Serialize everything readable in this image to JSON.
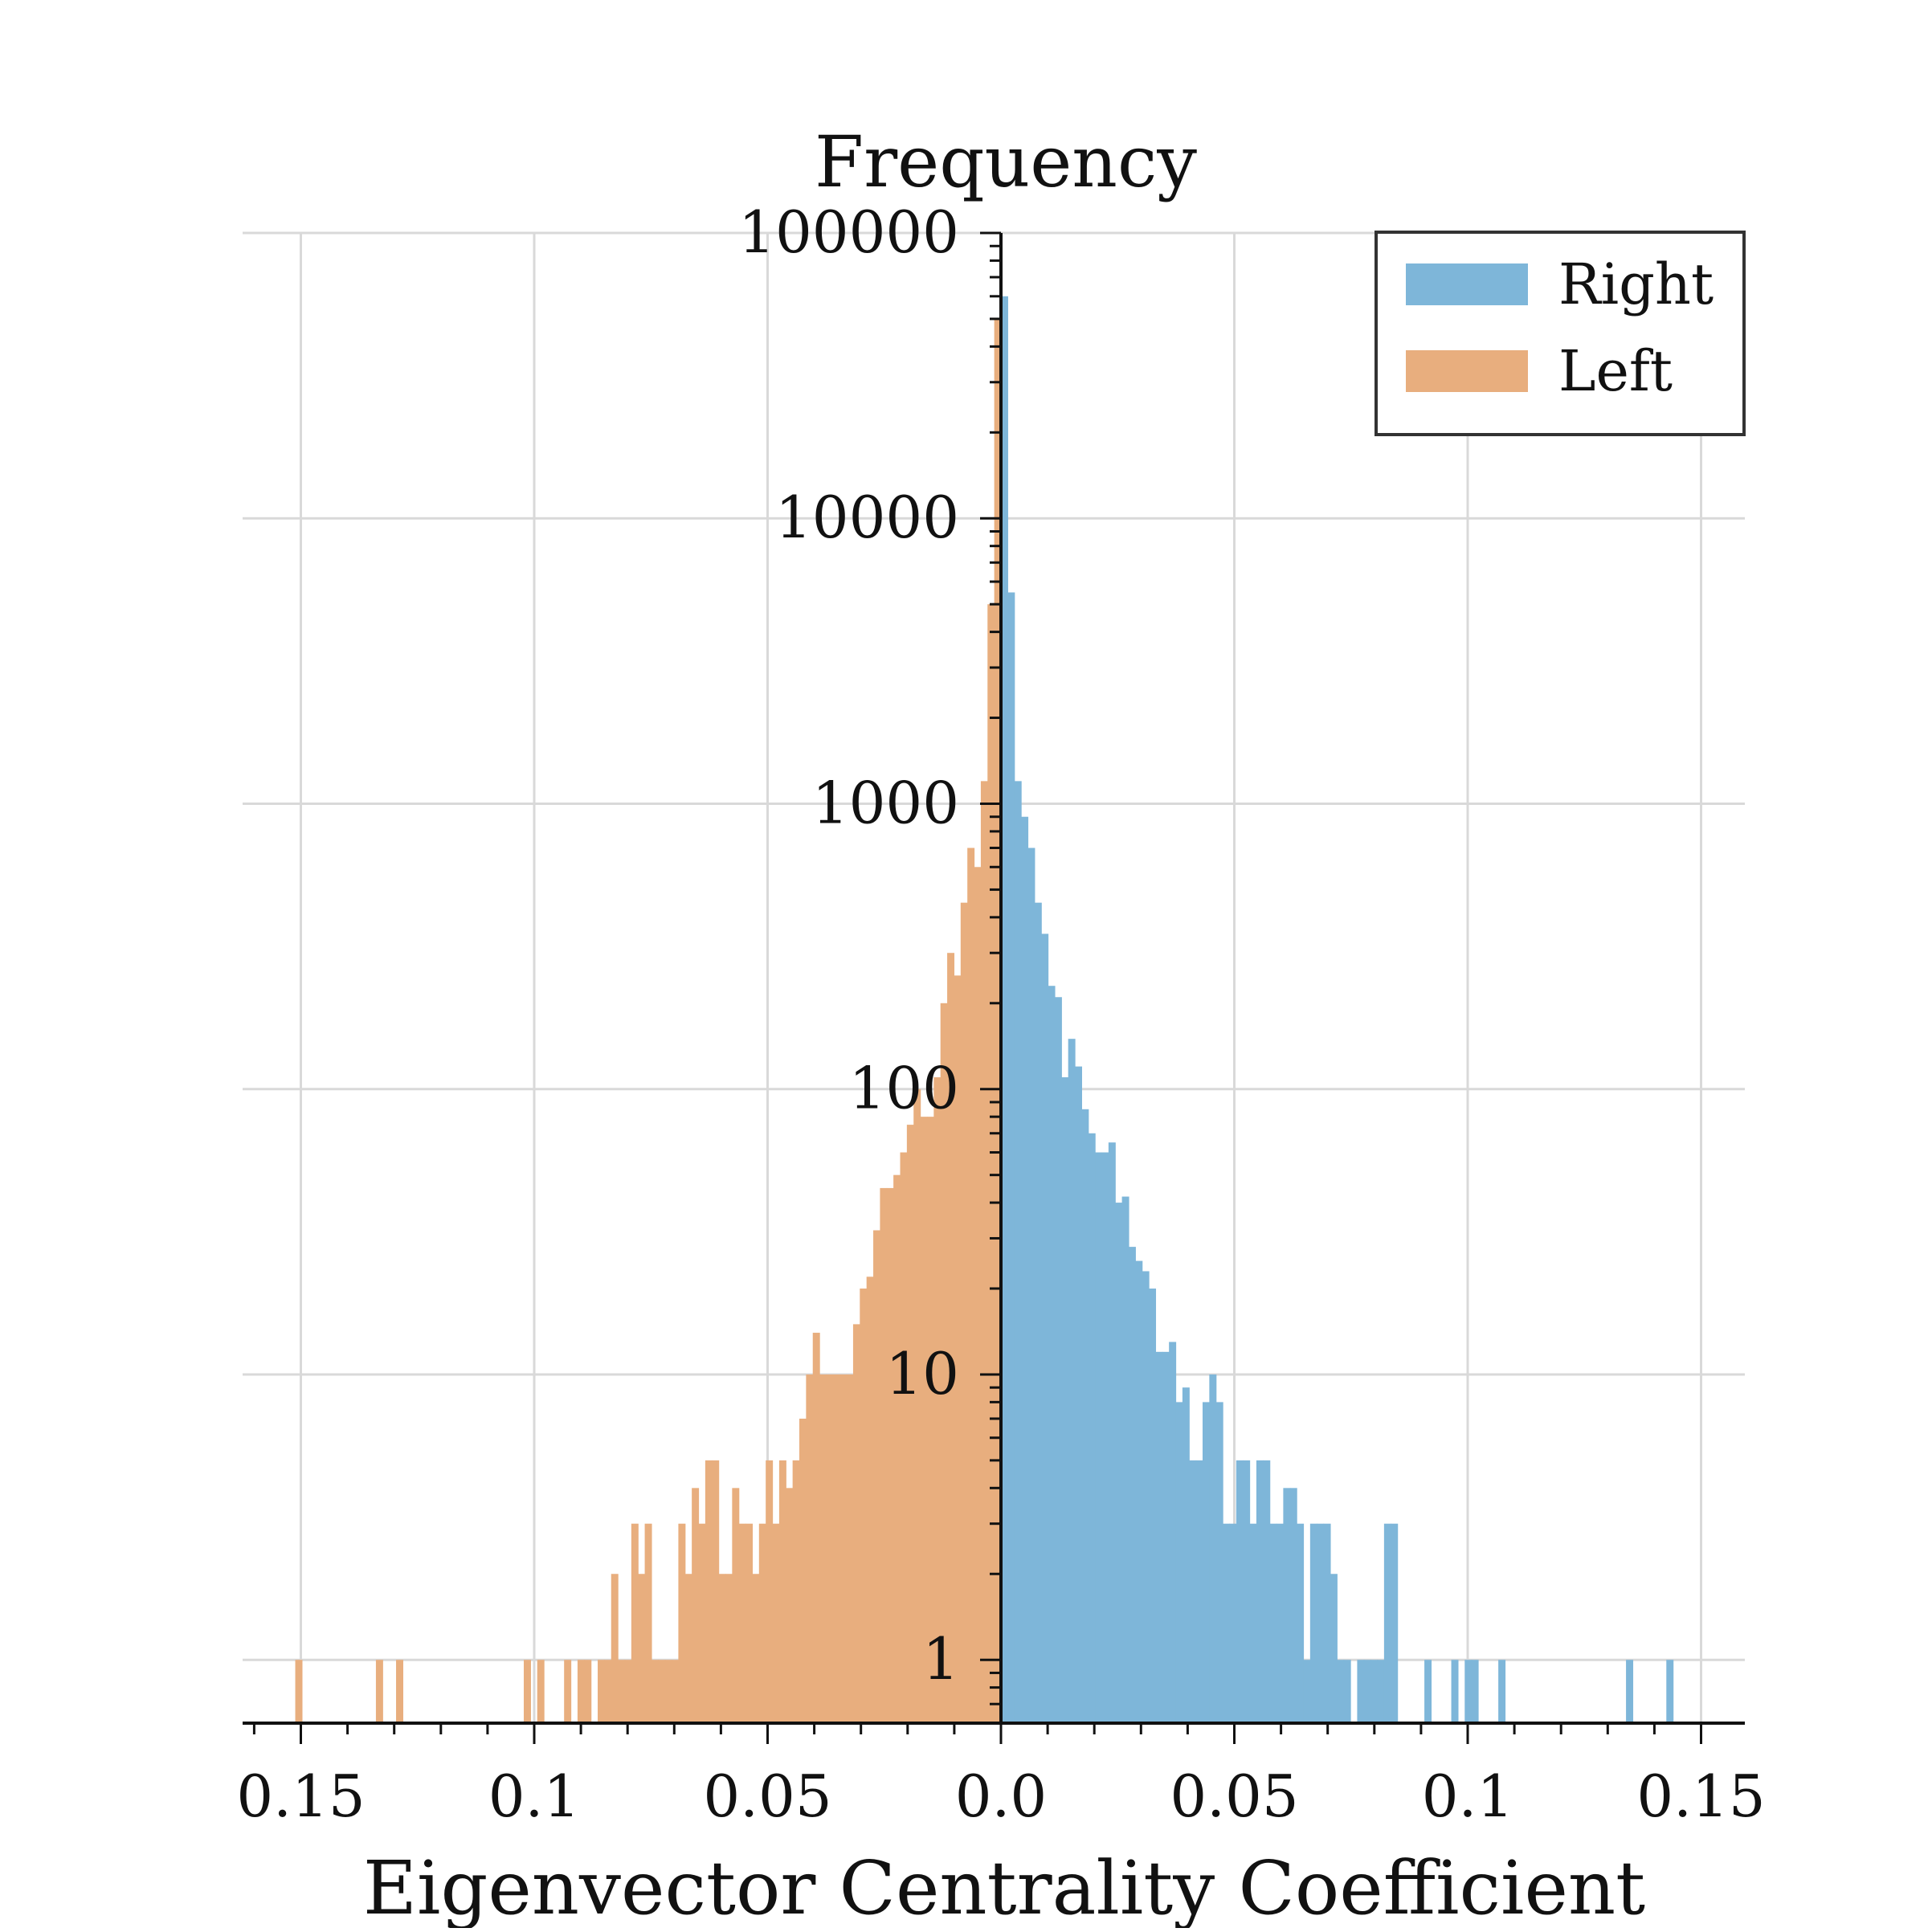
{
  "chart_data": {
    "type": "bar",
    "title": "Frequency",
    "xlabel": "Eigenvector Centrality Coefficient",
    "ylabel": "",
    "yscale": "log",
    "ylim": [
      0.6,
      100000
    ],
    "xlim": [
      -0.161,
      0.161
    ],
    "yticks": [
      1,
      10,
      100,
      1000,
      10000,
      100000
    ],
    "ytick_labels": [
      "1",
      "10",
      "100",
      "1000",
      "10000",
      "100000"
    ],
    "xticks": [
      -0.15,
      -0.1,
      -0.05,
      0.0,
      0.05,
      0.1,
      0.15
    ],
    "xtick_labels": [
      "0.15",
      "0.1",
      "0.05",
      "0.0",
      "0.05",
      "0.1",
      "0.15"
    ],
    "bin_width": 0.00144,
    "grid": true,
    "legend_position": "top-right",
    "colors": {
      "Right": "#7eb6d9",
      "Left": "#e8ae7e"
    },
    "series": [
      {
        "name": "Right",
        "side": "positive",
        "bins_from_zero": [
          60000,
          5500,
          1200,
          900,
          700,
          450,
          350,
          230,
          210,
          110,
          150,
          120,
          85,
          70,
          60,
          60,
          65,
          40,
          42,
          28,
          25,
          23,
          20,
          12,
          12,
          13,
          8,
          9,
          5,
          5,
          8,
          10,
          8,
          3,
          3,
          5,
          5,
          3,
          5,
          5,
          3,
          3,
          4,
          4,
          3,
          1,
          3,
          3,
          3,
          2,
          1,
          1,
          0,
          1,
          1,
          1,
          1,
          3,
          3,
          0,
          0,
          0,
          0,
          1,
          0,
          0,
          0,
          1,
          0,
          1,
          1,
          0,
          0,
          0,
          1,
          0,
          0,
          0,
          0,
          0,
          0,
          0,
          0,
          0,
          0,
          0,
          0,
          0,
          0,
          0,
          0,
          0,
          0,
          1,
          0,
          0,
          0,
          0,
          0,
          1
        ]
      },
      {
        "name": "Left",
        "side": "negative",
        "bins_from_zero": [
          50000,
          5000,
          1200,
          600,
          700,
          450,
          250,
          300,
          200,
          110,
          80,
          80,
          100,
          75,
          60,
          50,
          45,
          45,
          32,
          22,
          20,
          15,
          10,
          10,
          10,
          10,
          10,
          14,
          10,
          7,
          5,
          4,
          5,
          3,
          5,
          3,
          2,
          3,
          3,
          4,
          2,
          2,
          5,
          5,
          3,
          4,
          2,
          3,
          1,
          1,
          1,
          1,
          3,
          2,
          3,
          1,
          1,
          2,
          1,
          1,
          0,
          1,
          1,
          0,
          1,
          0,
          0,
          0,
          1,
          0,
          1,
          0,
          0,
          0,
          0,
          0,
          0,
          0,
          0,
          0,
          0,
          0,
          0,
          0,
          0,
          0,
          0,
          0,
          0,
          1,
          0,
          0,
          1,
          0,
          0,
          0,
          0,
          0,
          0,
          0,
          0,
          0,
          0,
          0,
          1
        ]
      }
    ]
  }
}
